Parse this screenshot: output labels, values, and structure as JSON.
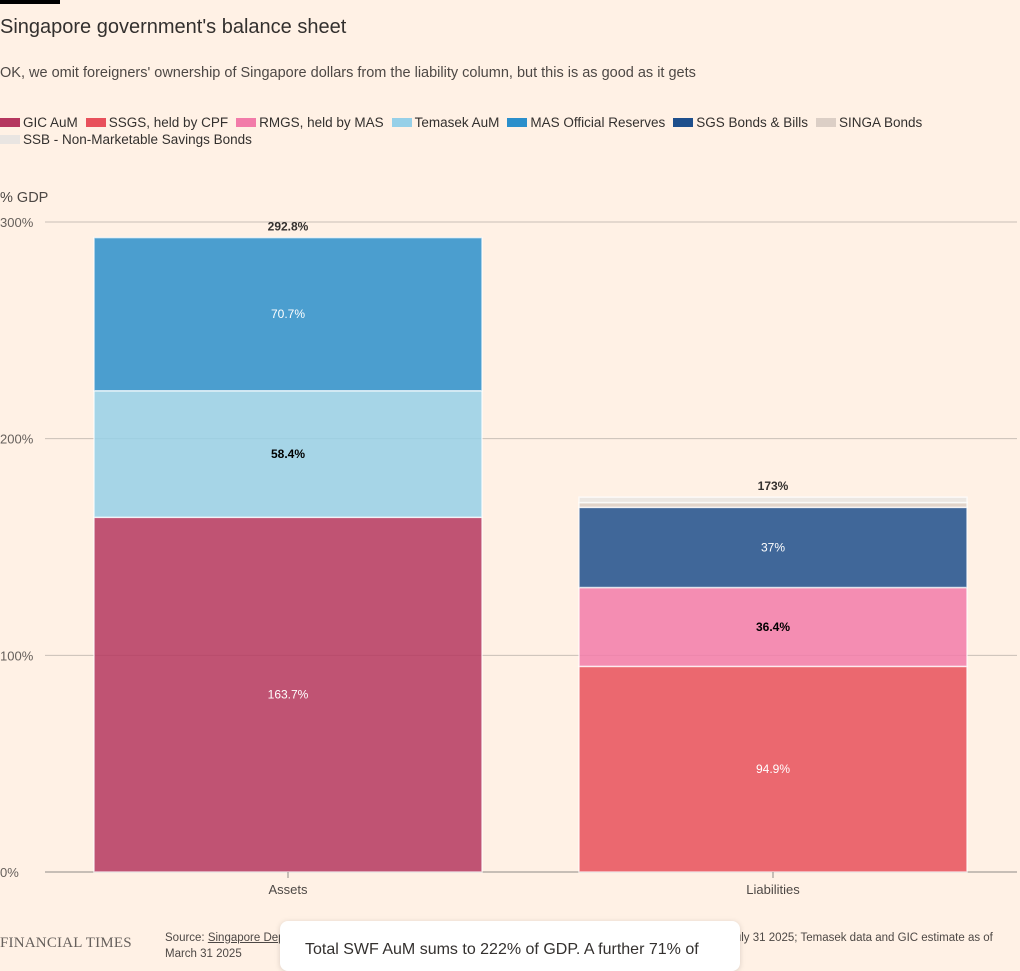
{
  "header": {
    "title": "Singapore government's balance sheet",
    "subtitle": "OK, we omit foreigners' ownership of Singapore dollars from the liability column, but this is as good as it gets"
  },
  "legend": [
    {
      "label": "GIC AuM",
      "color": "#b5375f"
    },
    {
      "label": "SSGS, held by CPF",
      "color": "#e8505b"
    },
    {
      "label": "RMGS, held by MAS",
      "color": "#f27ba9"
    },
    {
      "label": "Temasek AuM",
      "color": "#96d0e8"
    },
    {
      "label": "MAS Official Reserves",
      "color": "#2b8fcb"
    },
    {
      "label": "SGS Bonds & Bills",
      "color": "#1e4f8c"
    },
    {
      "label": "SINGA Bonds",
      "color": "#dccfc6"
    },
    {
      "label": "SSB - Non-Marketable Savings Bonds",
      "color": "#e9e5e2"
    }
  ],
  "chart_data": {
    "type": "bar",
    "stacked": true,
    "ylabel": "% GDP",
    "ylim": [
      0,
      300
    ],
    "yticks": [
      "0%",
      "100%",
      "200%",
      "300%"
    ],
    "grid": true,
    "categories": [
      "Assets",
      "Liabilities"
    ],
    "totals": [
      "292.8%",
      "173%"
    ],
    "series": [
      {
        "name": "GIC AuM",
        "color": "#b5375f",
        "values": [
          163.7,
          0
        ],
        "labels": [
          "163.7%",
          ""
        ],
        "label_color": "#ffffff"
      },
      {
        "name": "SSGS, held by CPF",
        "color": "#e8505b",
        "values": [
          0,
          94.9
        ],
        "labels": [
          "",
          "94.9%"
        ],
        "label_color": "#ffffff"
      },
      {
        "name": "RMGS, held by MAS",
        "color": "#f27ba9",
        "values": [
          0,
          36.4
        ],
        "labels": [
          "",
          "36.4%"
        ],
        "label_color": "#000000"
      },
      {
        "name": "Temasek AuM",
        "color": "#96d0e8",
        "values": [
          58.4,
          0
        ],
        "labels": [
          "58.4%",
          ""
        ],
        "label_color": "#000000"
      },
      {
        "name": "MAS Official Reserves",
        "color": "#2b8fcb",
        "values": [
          70.7,
          0
        ],
        "labels": [
          "70.7%",
          ""
        ],
        "label_color": "#ffffff"
      },
      {
        "name": "SGS Bonds & Bills",
        "color": "#1e4f8c",
        "values": [
          0,
          37
        ],
        "labels": [
          "",
          "37%"
        ],
        "label_color": "#ffffff"
      },
      {
        "name": "SINGA Bonds",
        "color": "#dccfc6",
        "values": [
          0,
          2.2
        ],
        "labels": [
          "",
          ""
        ],
        "label_color": "#000000"
      },
      {
        "name": "SSB - Non-Marketable Savings Bonds",
        "color": "#e9e5e2",
        "values": [
          0,
          2.5
        ],
        "labels": [
          "",
          ""
        ],
        "label_color": "#000000"
      }
    ]
  },
  "footer": {
    "logo": "FINANCIAL TIMES",
    "source_prefix": "Source: ",
    "source_link": "Singapore Dept of Statistics",
    "source_rest": ", MAS, Temasek, GlobalSWF • Liability data = Q1 2025; MAS assets as of July 31 2025; Temasek data and GIC estimate as of March 31 2025"
  },
  "tooltip": {
    "text": "Total SWF AuM sums to 222% of GDP. A further 71% of"
  }
}
